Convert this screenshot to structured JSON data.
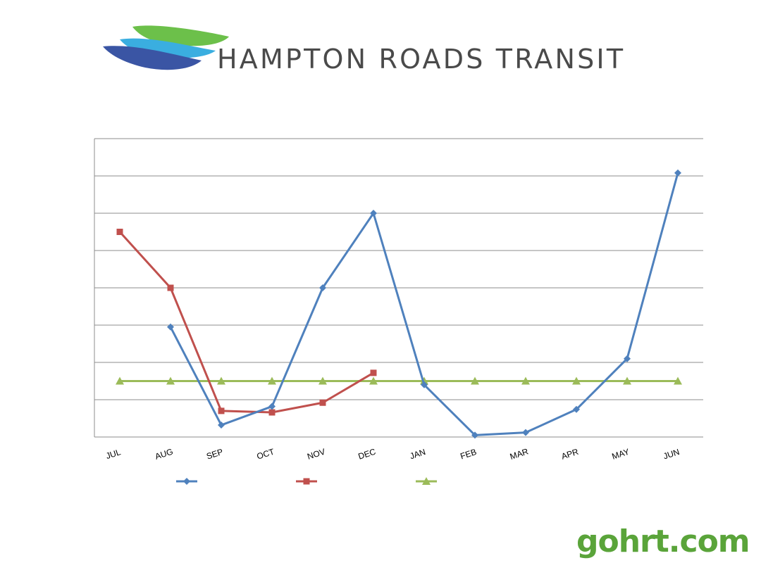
{
  "header": {
    "brand_name": "HAMPTON ROADS TRANSIT",
    "stripe_colors": [
      "#6cc04a",
      "#3aaee0",
      "#3a55a4"
    ]
  },
  "footer": {
    "site": "gohrt.com",
    "color": "#5aa43a"
  },
  "chart_data": {
    "type": "line",
    "categories": [
      "JUL",
      "AUG",
      "SEP",
      "OCT",
      "NOV",
      "DEC",
      "JAN",
      "FEB",
      "MAR",
      "APR",
      "MAY",
      "JUN"
    ],
    "ylim": [
      0,
      8
    ],
    "gridlines": 8,
    "grid": true,
    "legend_placement": "bottom",
    "series": [
      {
        "color": "#4f81bd",
        "marker": "diamond",
        "values": [
          null,
          2.95,
          0.32,
          0.82,
          4.0,
          6.0,
          1.4,
          0.05,
          0.12,
          0.74,
          2.1,
          7.08
        ]
      },
      {
        "color": "#c0504d",
        "marker": "square",
        "values": [
          5.5,
          4.0,
          0.7,
          0.66,
          0.92,
          1.72,
          null,
          null,
          null,
          null,
          null,
          null
        ]
      },
      {
        "color": "#9bbb59",
        "marker": "triangle",
        "values": [
          1.5,
          1.5,
          1.5,
          1.5,
          1.5,
          1.5,
          1.5,
          1.5,
          1.5,
          1.5,
          1.5,
          1.5
        ]
      }
    ]
  }
}
